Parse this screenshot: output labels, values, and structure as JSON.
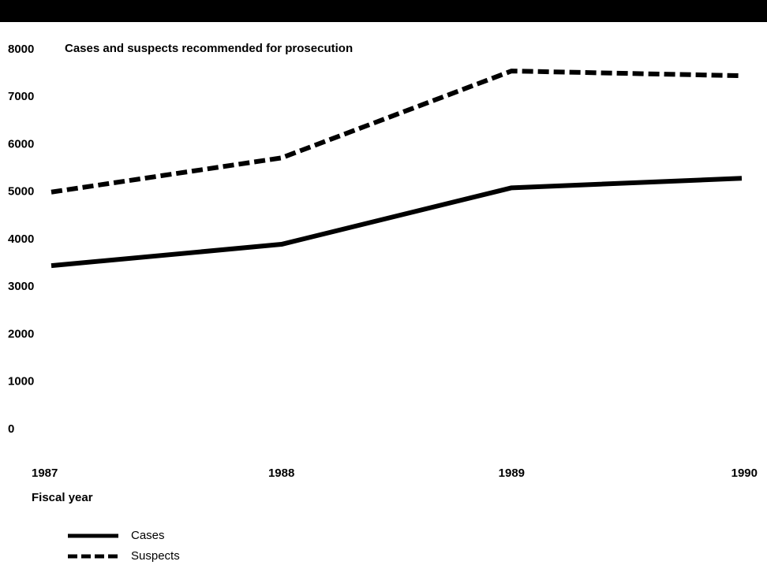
{
  "chart_data": {
    "type": "line",
    "title": "Cases and suspects recommended for prosecution",
    "x_label": "Fiscal year",
    "categories": [
      "1987",
      "1988",
      "1989",
      "1990"
    ],
    "series": [
      {
        "name": "Cases",
        "color": "#000000",
        "style": "solid",
        "values": [
          3450,
          3900,
          5090,
          5290
        ]
      },
      {
        "name": "Suspects",
        "color": "#000000",
        "style": "dashed",
        "values": [
          5000,
          5720,
          7550,
          7450
        ]
      }
    ],
    "ylim": [
      0,
      8000
    ],
    "yticks": [
      0,
      1000,
      2000,
      3000,
      4000,
      5000,
      6000,
      7000,
      8000
    ],
    "grid": false
  }
}
